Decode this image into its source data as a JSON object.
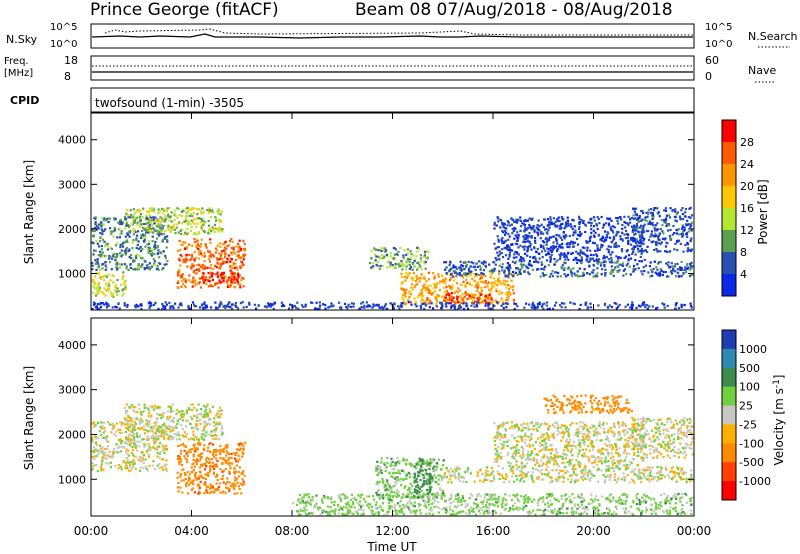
{
  "header": {
    "station": "Prince George (fitACF)",
    "beam_dates": "Beam 08  07/Aug/2018 - 08/Aug/2018"
  },
  "ticks_x": [
    "00:00",
    "04:00",
    "08:00",
    "12:00",
    "16:00",
    "20:00",
    "00:00"
  ],
  "x_label": "Time UT",
  "strip_panels": {
    "noise": {
      "left_label": "N.Sky",
      "left_ticks": [
        "10^5",
        "10^0"
      ],
      "right_label": "N.Search",
      "right_ticks": [
        "10^5",
        "10^0"
      ]
    },
    "freq": {
      "left_label_1": "Freq.",
      "left_label_2": "[MHz]",
      "left_ticks": [
        "18",
        "8"
      ],
      "right_label": "Nave",
      "right_ticks": [
        "60",
        "0"
      ]
    },
    "cpid": {
      "left_label": "CPID",
      "program": "twofsound (1-min) -3505"
    }
  },
  "panels": {
    "power": {
      "y_label": "Slant Range [km]",
      "y_ticks": [
        "4000",
        "3000",
        "2000",
        "1000"
      ],
      "cbar_label": "Power [dB]",
      "cbar_ticks": [
        "28",
        "24",
        "20",
        "16",
        "12",
        "8",
        "4"
      ],
      "cbar_colors": [
        "#ff0000",
        "#ff5a00",
        "#ff9600",
        "#ffc800",
        "#b4e632",
        "#5aa050",
        "#2850b4",
        "#0a28e6"
      ]
    },
    "velocity": {
      "y_label": "Slant Range [km]",
      "y_ticks": [
        "4000",
        "3000",
        "2000",
        "1000"
      ],
      "cbar_label": "Velocity [m s^-1]",
      "cbar_ticks": [
        "1000",
        "500",
        "100",
        "25",
        "-25",
        "-100",
        "-500",
        "-1000"
      ],
      "cbar_colors": [
        "#1e3cb4",
        "#2e8bb0",
        "#3c8c50",
        "#70d040",
        "#c8c8c0",
        "#ffb000",
        "#ff8a00",
        "#ff4000",
        "#ff0000"
      ]
    }
  },
  "chart_data": [
    {
      "type": "heatmap",
      "title": "Prince George (fitACF) Beam 08 07/Aug/2018 - 08/Aug/2018",
      "xlabel": "Time UT",
      "ylabel": "Slant Range [km]",
      "xlim_hours": [
        0,
        24
      ],
      "ylim_km": [
        180,
        4600
      ],
      "colorbar": "Power [dB]",
      "color_range": [
        0,
        30
      ],
      "regions": [
        {
          "t0": 3.4,
          "t1": 6.1,
          "r0": 700,
          "r1": 1800,
          "level": 24
        },
        {
          "t0": 4.3,
          "t1": 5.9,
          "r0": 750,
          "r1": 1050,
          "level": 29
        },
        {
          "t0": 0.0,
          "t1": 3.0,
          "r0": 1100,
          "r1": 2300,
          "level": 10
        },
        {
          "t0": 1.3,
          "t1": 5.2,
          "r0": 1900,
          "r1": 2500,
          "level": 14
        },
        {
          "t0": 0.0,
          "t1": 1.4,
          "r0": 500,
          "r1": 1050,
          "level": 15
        },
        {
          "t0": 11.0,
          "t1": 13.4,
          "r0": 1100,
          "r1": 1600,
          "level": 12
        },
        {
          "t0": 12.3,
          "t1": 16.8,
          "r0": 330,
          "r1": 1050,
          "level": 20
        },
        {
          "t0": 14.0,
          "t1": 16.0,
          "r0": 350,
          "r1": 600,
          "level": 26
        },
        {
          "t0": 14.0,
          "t1": 24.0,
          "r0": 950,
          "r1": 1300,
          "level": 8
        },
        {
          "t0": 16.0,
          "t1": 22.0,
          "r0": 1300,
          "r1": 2300,
          "level": 6
        },
        {
          "t0": 21.5,
          "t1": 24.0,
          "r0": 1500,
          "r1": 2500,
          "level": 7
        },
        {
          "t0": 0.0,
          "t1": 24.0,
          "r0": 200,
          "r1": 380,
          "level": 6
        }
      ]
    },
    {
      "type": "heatmap",
      "title": "",
      "xlabel": "Time UT",
      "ylabel": "Slant Range [km]",
      "xlim_hours": [
        0,
        24
      ],
      "ylim_km": [
        180,
        4600
      ],
      "colorbar": "Velocity [m s^-1]",
      "color_range": [
        -1000,
        1000
      ],
      "regions": [
        {
          "t0": 3.4,
          "t1": 6.1,
          "r0": 700,
          "r1": 1850,
          "level": -250
        },
        {
          "t0": 0.0,
          "t1": 3.0,
          "r0": 1200,
          "r1": 2300,
          "level": 0
        },
        {
          "t0": 1.3,
          "t1": 5.2,
          "r0": 1900,
          "r1": 2700,
          "level": 0
        },
        {
          "t0": 11.3,
          "t1": 14.0,
          "r0": 600,
          "r1": 1500,
          "level": 60
        },
        {
          "t0": 12.8,
          "t1": 13.6,
          "r0": 700,
          "r1": 1500,
          "level": 200
        },
        {
          "t0": 8.0,
          "t1": 24.0,
          "r0": 180,
          "r1": 700,
          "level": 50
        },
        {
          "t0": 14.0,
          "t1": 24.0,
          "r0": 950,
          "r1": 1300,
          "level": 0
        },
        {
          "t0": 16.0,
          "t1": 22.0,
          "r0": 1300,
          "r1": 2300,
          "level": 0
        },
        {
          "t0": 21.5,
          "t1": 24.0,
          "r0": 1500,
          "r1": 2400,
          "level": 0
        },
        {
          "t0": 18.0,
          "t1": 21.5,
          "r0": 2500,
          "r1": 2900,
          "level": -150
        }
      ]
    }
  ]
}
